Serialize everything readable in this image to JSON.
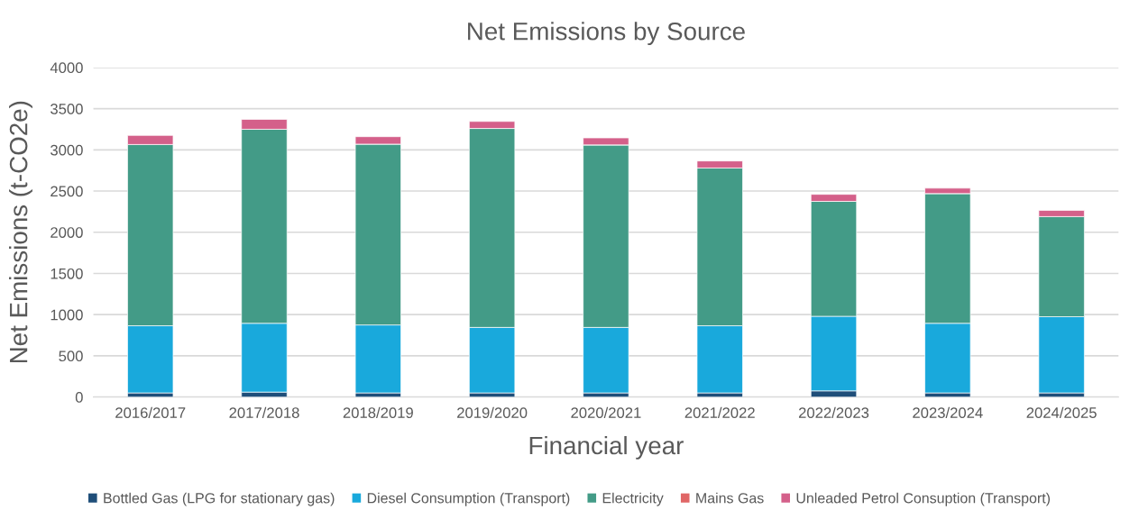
{
  "chart_data": {
    "type": "bar",
    "title": "Net Emissions by Source",
    "xlabel": "Financial year",
    "ylabel": "Net Emissions (t-CO2e)",
    "categories": [
      "2016/2017",
      "2017/2018",
      "2018/2019",
      "2019/2020",
      "2020/2021",
      "2021/2022",
      "2022/2023",
      "2023/2024",
      "2024/2025"
    ],
    "stacked": true,
    "ylim": [
      0,
      4000
    ],
    "yticks": [
      0,
      500,
      1000,
      1500,
      2000,
      2500,
      3000,
      3500,
      4000
    ],
    "grid": "y",
    "legend": "bottom",
    "series": [
      {
        "name": "Bottled Gas (LPG for stationary gas)",
        "color": "#1f4e79",
        "values": [
          50,
          60,
          50,
          50,
          50,
          50,
          75,
          50,
          50
        ]
      },
      {
        "name": "Diesel Consumption (Transport)",
        "color": "#19a9dc",
        "values": [
          815,
          835,
          825,
          795,
          795,
          815,
          905,
          845,
          925
        ]
      },
      {
        "name": "Electricity",
        "color": "#439b87",
        "values": [
          2200,
          2355,
          2195,
          2415,
          2215,
          1915,
          1395,
          1575,
          1215
        ]
      },
      {
        "name": "Mains Gas",
        "color": "#e06666",
        "values": [
          0,
          0,
          0,
          0,
          0,
          0,
          0,
          0,
          0
        ]
      },
      {
        "name": "Unleaded Petrol Consuption (Transport)",
        "color": "#d4608a",
        "values": [
          110,
          120,
          90,
          85,
          85,
          85,
          85,
          65,
          75
        ]
      }
    ]
  }
}
